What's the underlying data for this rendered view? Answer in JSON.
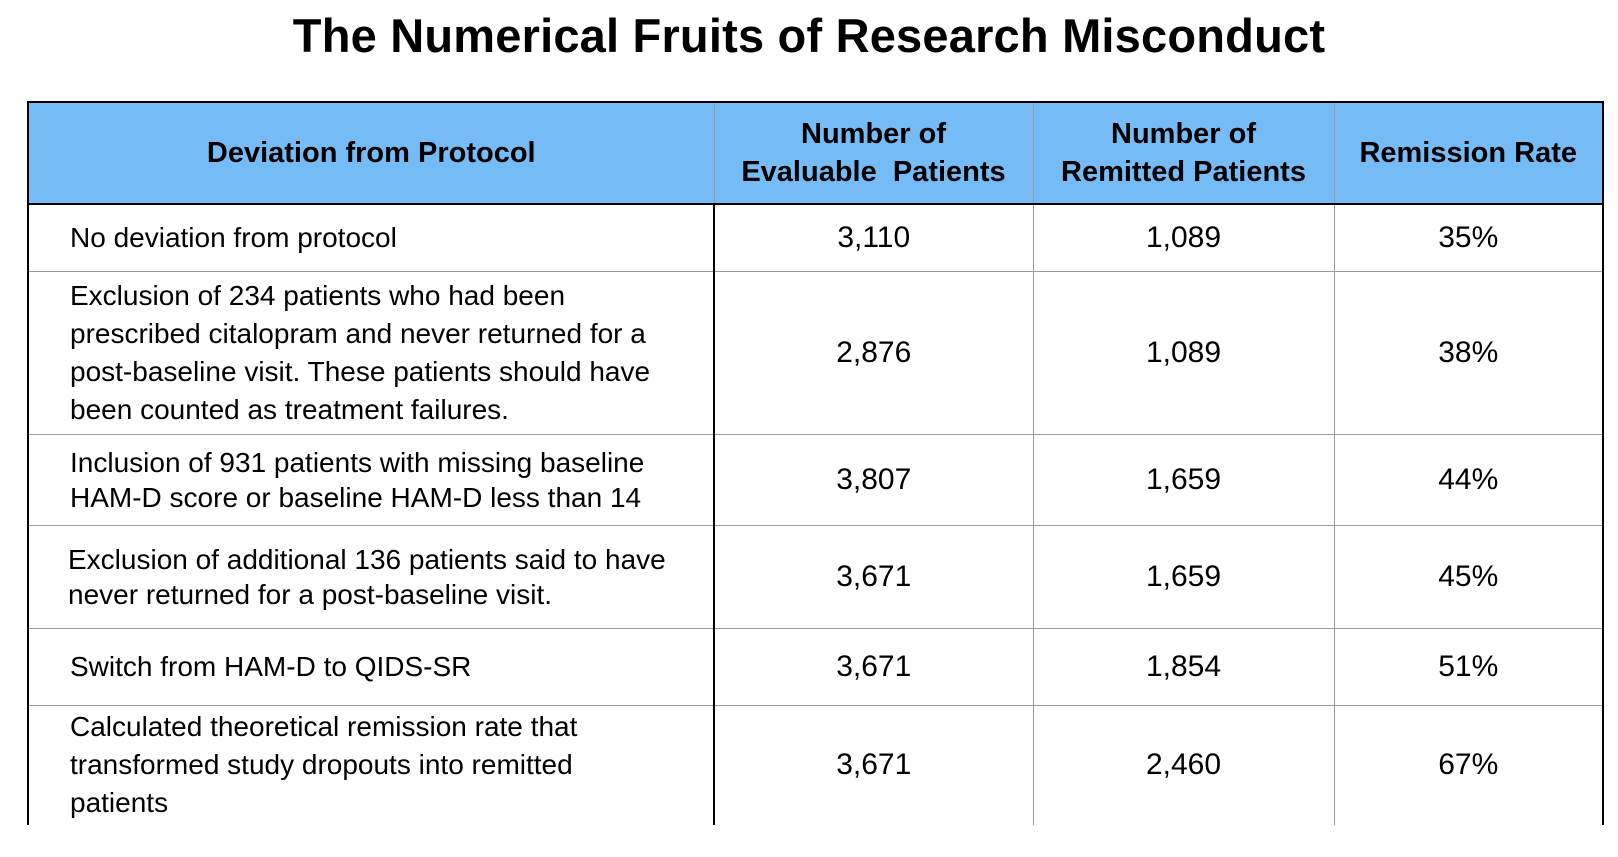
{
  "title": "The Numerical Fruits of Research Misconduct",
  "colors": {
    "header_background": "#75bcf6",
    "border": "#000000",
    "inner_rule": "#9a9a9a"
  },
  "chart_data": {
    "type": "table",
    "title": "The Numerical Fruits of Research Misconduct",
    "columns": [
      {
        "lines": [
          "Deviation from Protocol"
        ]
      },
      {
        "lines": [
          "Number of",
          "Evaluable  Patients"
        ]
      },
      {
        "lines": [
          "Number of",
          "Remitted Patients"
        ]
      },
      {
        "lines": [
          "Remission Rate"
        ]
      }
    ],
    "rows": [
      {
        "deviation": [
          "No deviation from protocol"
        ],
        "evaluable": "3,110",
        "remitted": "1,089",
        "rate": "35%"
      },
      {
        "deviation": [
          "Exclusion of 234 patients who had been",
          "prescribed citalopram and never returned for a",
          "post-baseline visit. These patients should have",
          "been counted as treatment failures."
        ],
        "evaluable": "2,876",
        "remitted": "1,089",
        "rate": "38%"
      },
      {
        "deviation": [
          "Inclusion of 931 patients with missing baseline",
          "HAM-D score or baseline HAM-D less than 14"
        ],
        "evaluable": "3,807",
        "remitted": "1,659",
        "rate": "44%"
      },
      {
        "deviation": [
          "Exclusion of additional 136 patients said to have",
          "never returned for a post-baseline visit."
        ],
        "evaluable": "3,671",
        "remitted": "1,659",
        "rate": "45%"
      },
      {
        "deviation": [
          "Switch from HAM-D to QIDS-SR"
        ],
        "evaluable": "3,671",
        "remitted": "1,854",
        "rate": "51%"
      },
      {
        "deviation": [
          "Calculated theoretical remission rate that",
          "transformed study dropouts into remitted",
          "patients"
        ],
        "evaluable": "3,671",
        "remitted": "2,460",
        "rate": "67%"
      }
    ]
  }
}
